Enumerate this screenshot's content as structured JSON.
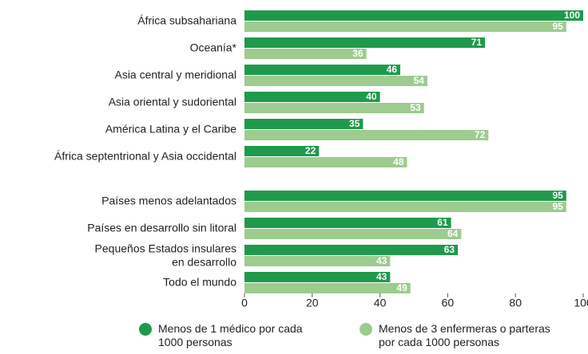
{
  "chart_data": {
    "type": "bar",
    "orientation": "horizontal",
    "categories": [
      "África subsahariana",
      "Oceanía*",
      "Asia central y meridional",
      "Asia oriental y sudoriental",
      "América Latina y el Caribe",
      "África septentrional y Asia occidental",
      "Países menos adelantados",
      "Países en desarrollo sin litoral",
      "Pequeños Estados insulares\nen desarrollo",
      "Todo el mundo"
    ],
    "series": [
      {
        "name": "Menos de 1 médico por cada\n1000 personas",
        "color": "#1f9a4c",
        "values": [
          100,
          71,
          46,
          40,
          35,
          22,
          95,
          61,
          63,
          43
        ]
      },
      {
        "name": "Menos de 3 enfermeras o parteras\npor cada 1000 personas",
        "color": "#9dcb90",
        "values": [
          95,
          36,
          54,
          53,
          72,
          48,
          95,
          64,
          43,
          49
        ]
      }
    ],
    "xlim": [
      0,
      100
    ],
    "xticks": [
      0,
      20,
      40,
      60,
      80,
      100
    ]
  }
}
